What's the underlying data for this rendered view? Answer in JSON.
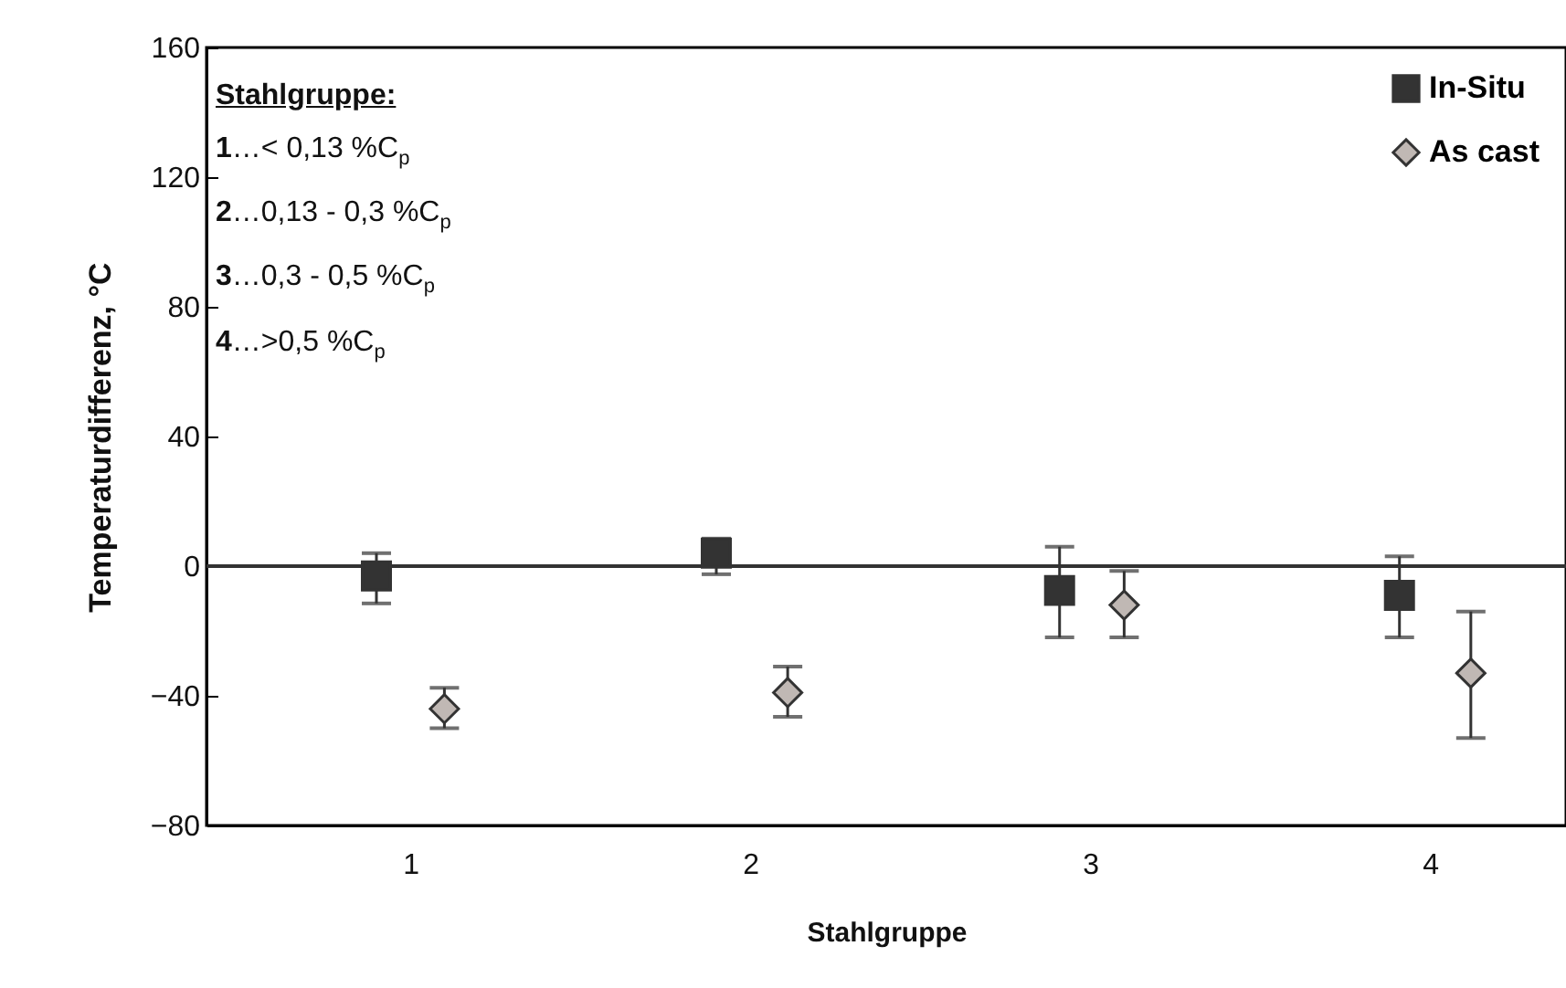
{
  "chart_data": {
    "type": "scatter",
    "xlabel": "Stahlgruppe",
    "ylabel": "Temperaturdifferenz, °C",
    "xlim": [
      0.4,
      4.4
    ],
    "xticks": [
      1,
      2,
      3,
      4
    ],
    "ylim": [
      -80,
      160
    ],
    "yticks": [
      -80,
      -40,
      0,
      40,
      80,
      120,
      160
    ],
    "grid": false,
    "legend": "top right",
    "ref_lines": [
      {
        "axis": "y",
        "value": 0,
        "color": "#333333"
      }
    ],
    "annotations": [
      "Stahlgruppe:",
      "1…< 0,13 %C$_{p}$",
      "2…0,13 - 0,3 %C$_{p}$",
      "3…0,3 - 0,5 %C$_{p}$",
      "4…>0,5 %C$_{p}$"
    ],
    "series": [
      {
        "name": "In-Situ",
        "color": "#333333",
        "marker": "square",
        "x": [
          0.9,
          1.9,
          2.91,
          3.91
        ],
        "values": [
          -3,
          4,
          -7.5,
          -9
        ],
        "errors": [
          [
            -11.5,
            4
          ],
          [
            -2.5,
            8.5
          ],
          [
            -22,
            6
          ],
          [
            -22,
            3
          ]
        ]
      },
      {
        "name": "As cast",
        "color": "#c0b8b4",
        "marker": "diamond",
        "x": [
          1.1,
          2.11,
          3.1,
          4.12
        ],
        "values": [
          -44,
          -39,
          -12,
          -33
        ],
        "errors": [
          [
            -50,
            -37.5
          ],
          [
            -46.5,
            -31
          ],
          [
            -22,
            -1.5
          ],
          [
            -53,
            -14
          ]
        ]
      }
    ]
  }
}
